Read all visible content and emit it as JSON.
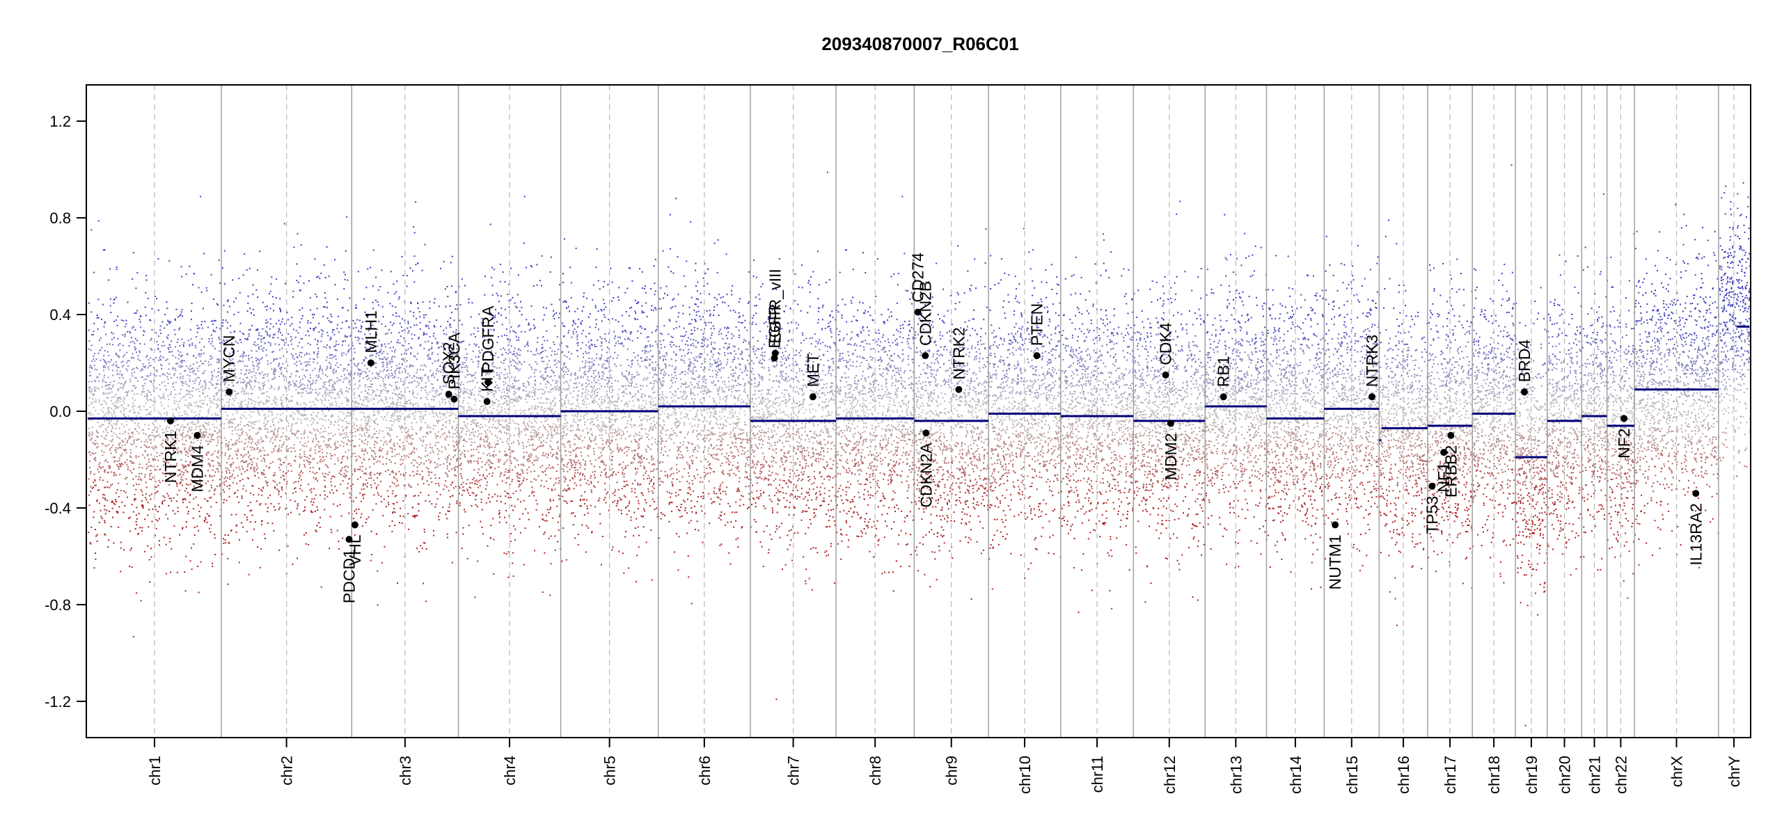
{
  "chart_data": {
    "type": "scatter",
    "title": "209340870007_R06C01",
    "xlabel": "",
    "ylabel": "",
    "ylim": [
      -1.35,
      1.35
    ],
    "yticks": [
      -1.2,
      -0.8,
      -0.4,
      0.0,
      0.4,
      0.8,
      1.2
    ],
    "ytick_labels": [
      "-1.2",
      "-0.8",
      "-0.4",
      "0.0",
      "0.4",
      "0.8",
      "1.2"
    ],
    "grid": false,
    "chromosomes": [
      {
        "name": "chr1",
        "rel_size": 248,
        "segments": [
          {
            "from": 0,
            "to": 1,
            "value": -0.03
          }
        ]
      },
      {
        "name": "chr2",
        "rel_size": 242,
        "segments": [
          {
            "from": 0,
            "to": 1,
            "value": 0.01
          }
        ]
      },
      {
        "name": "chr3",
        "rel_size": 198,
        "segments": [
          {
            "from": 0,
            "to": 1,
            "value": 0.01
          }
        ]
      },
      {
        "name": "chr4",
        "rel_size": 190,
        "segments": [
          {
            "from": 0,
            "to": 1,
            "value": -0.02
          }
        ]
      },
      {
        "name": "chr5",
        "rel_size": 181,
        "segments": [
          {
            "from": 0,
            "to": 1,
            "value": 0.0
          }
        ]
      },
      {
        "name": "chr6",
        "rel_size": 171,
        "segments": [
          {
            "from": 0,
            "to": 1,
            "value": 0.02
          }
        ]
      },
      {
        "name": "chr7",
        "rel_size": 159,
        "segments": [
          {
            "from": 0,
            "to": 1,
            "value": -0.04
          }
        ]
      },
      {
        "name": "chr8",
        "rel_size": 145,
        "segments": [
          {
            "from": 0,
            "to": 1,
            "value": -0.03
          }
        ]
      },
      {
        "name": "chr9",
        "rel_size": 138,
        "segments": [
          {
            "from": 0,
            "to": 1,
            "value": -0.04
          }
        ]
      },
      {
        "name": "chr10",
        "rel_size": 134,
        "segments": [
          {
            "from": 0,
            "to": 1,
            "value": -0.01
          }
        ]
      },
      {
        "name": "chr11",
        "rel_size": 135,
        "segments": [
          {
            "from": 0,
            "to": 1,
            "value": -0.02
          }
        ]
      },
      {
        "name": "chr12",
        "rel_size": 133,
        "segments": [
          {
            "from": 0,
            "to": 1,
            "value": -0.04
          }
        ]
      },
      {
        "name": "chr13",
        "rel_size": 114,
        "segments": [
          {
            "from": 0,
            "to": 1,
            "value": 0.02
          }
        ]
      },
      {
        "name": "chr14",
        "rel_size": 107,
        "segments": [
          {
            "from": 0,
            "to": 1,
            "value": -0.03
          }
        ]
      },
      {
        "name": "chr15",
        "rel_size": 102,
        "segments": [
          {
            "from": 0,
            "to": 1,
            "value": 0.01
          }
        ]
      },
      {
        "name": "chr16",
        "rel_size": 90,
        "segments": [
          {
            "from": 0,
            "to": 0.05,
            "value": -0.12
          },
          {
            "from": 0.05,
            "to": 1,
            "value": -0.07
          }
        ]
      },
      {
        "name": "chr17",
        "rel_size": 83,
        "segments": [
          {
            "from": 0,
            "to": 1,
            "value": -0.06
          }
        ]
      },
      {
        "name": "chr18",
        "rel_size": 80,
        "segments": [
          {
            "from": 0,
            "to": 1,
            "value": -0.01
          }
        ]
      },
      {
        "name": "chr19",
        "rel_size": 59,
        "segments": [
          {
            "from": 0,
            "to": 1,
            "value": -0.19
          }
        ]
      },
      {
        "name": "chr20",
        "rel_size": 64,
        "segments": [
          {
            "from": 0,
            "to": 1,
            "value": -0.04
          }
        ]
      },
      {
        "name": "chr21",
        "rel_size": 47,
        "segments": [
          {
            "from": 0,
            "to": 1,
            "value": -0.02
          }
        ]
      },
      {
        "name": "chr22",
        "rel_size": 51,
        "segments": [
          {
            "from": 0,
            "to": 1,
            "value": -0.06
          }
        ]
      },
      {
        "name": "chrX",
        "rel_size": 156,
        "segments": [
          {
            "from": 0,
            "to": 1,
            "value": 0.09
          }
        ]
      },
      {
        "name": "chrY",
        "rel_size": 57,
        "segments": [
          {
            "from": 0.6,
            "to": 1,
            "value": 0.35
          }
        ]
      }
    ],
    "genes": [
      {
        "name": "NTRK1",
        "chr": "chr1",
        "pos": 0.62,
        "value": -0.04
      },
      {
        "name": "MDM4",
        "chr": "chr1",
        "pos": 0.82,
        "value": -0.1
      },
      {
        "name": "MYCN",
        "chr": "chr2",
        "pos": 0.06,
        "value": 0.08
      },
      {
        "name": "PDCD1",
        "chr": "chr2",
        "pos": 0.98,
        "value": -0.53
      },
      {
        "name": "VHL",
        "chr": "chr3",
        "pos": 0.03,
        "value": -0.47
      },
      {
        "name": "MLH1",
        "chr": "chr3",
        "pos": 0.18,
        "value": 0.2
      },
      {
        "name": "SOX2",
        "chr": "chr3",
        "pos": 0.91,
        "value": 0.07
      },
      {
        "name": "PIK3CA",
        "chr": "chr3",
        "pos": 0.96,
        "value": 0.05
      },
      {
        "name": "KIT",
        "chr": "chr4",
        "pos": 0.28,
        "value": 0.04
      },
      {
        "name": "PDGFRA",
        "chr": "chr4",
        "pos": 0.29,
        "value": 0.12
      },
      {
        "name": "EGFR",
        "chr": "chr7",
        "pos": 0.28,
        "value": 0.22
      },
      {
        "name": "EGFR_vIII",
        "chr": "chr7",
        "pos": 0.29,
        "value": 0.24
      },
      {
        "name": "MET",
        "chr": "chr7",
        "pos": 0.73,
        "value": 0.06
      },
      {
        "name": "CD274",
        "chr": "chr9",
        "pos": 0.05,
        "value": 0.41
      },
      {
        "name": "CDKN2B",
        "chr": "chr9",
        "pos": 0.15,
        "value": 0.23
      },
      {
        "name": "CDKN2A",
        "chr": "chr9",
        "pos": 0.16,
        "value": -0.09
      },
      {
        "name": "NTRK2",
        "chr": "chr9",
        "pos": 0.6,
        "value": 0.09
      },
      {
        "name": "PTEN",
        "chr": "chr10",
        "pos": 0.67,
        "value": 0.23
      },
      {
        "name": "CDK4",
        "chr": "chr12",
        "pos": 0.45,
        "value": 0.15
      },
      {
        "name": "MDM2",
        "chr": "chr12",
        "pos": 0.52,
        "value": -0.05
      },
      {
        "name": "RB1",
        "chr": "chr13",
        "pos": 0.3,
        "value": 0.06
      },
      {
        "name": "NUTM1",
        "chr": "chr15",
        "pos": 0.2,
        "value": -0.47
      },
      {
        "name": "NTRK3",
        "chr": "chr15",
        "pos": 0.87,
        "value": 0.06
      },
      {
        "name": "TP53",
        "chr": "chr17",
        "pos": 0.1,
        "value": -0.31
      },
      {
        "name": "NF1",
        "chr": "chr17",
        "pos": 0.36,
        "value": -0.17
      },
      {
        "name": "ERBB2",
        "chr": "chr17",
        "pos": 0.52,
        "value": -0.1
      },
      {
        "name": "BRD4",
        "chr": "chr19",
        "pos": 0.28,
        "value": 0.08
      },
      {
        "name": "NF2",
        "chr": "chr22",
        "pos": 0.62,
        "value": -0.03
      },
      {
        "name": "IL13RA2",
        "chr": "chrX",
        "pos": 0.73,
        "value": -0.34
      }
    ]
  }
}
